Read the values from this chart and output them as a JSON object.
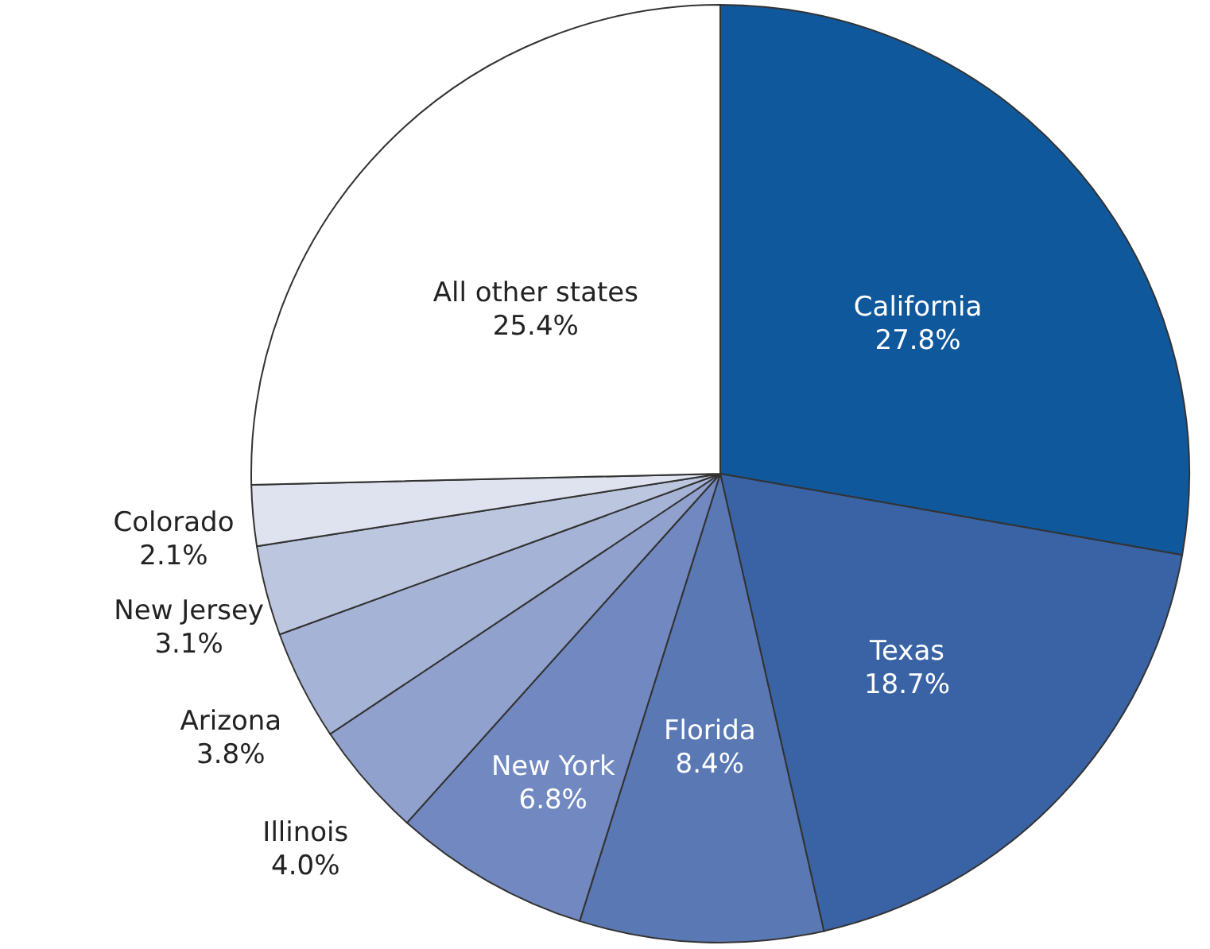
{
  "chart_data": {
    "type": "pie",
    "categories": [
      "California",
      "Texas",
      "Florida",
      "New York",
      "Illinois",
      "Arizona",
      "New Jersey",
      "Colorado",
      "All other states"
    ],
    "values": [
      27.8,
      18.7,
      8.4,
      6.8,
      4.0,
      3.8,
      3.1,
      2.1,
      25.4
    ],
    "value_labels": [
      "27.8%",
      "18.7%",
      "8.4%",
      "6.8%",
      "4.0%",
      "3.8%",
      "3.1%",
      "2.1%",
      "25.4%"
    ],
    "colors": [
      "#10589c",
      "#3a63a5",
      "#5a79b4",
      "#7189c0",
      "#8fa1cc",
      "#a5b3d6",
      "#bcc6df",
      "#dee3ef",
      "#ffffff"
    ]
  }
}
